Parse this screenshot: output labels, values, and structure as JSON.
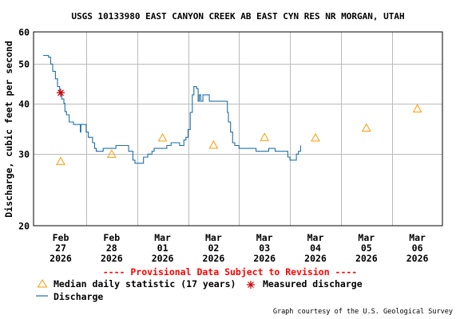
{
  "chart_data": {
    "type": "line",
    "title": "USGS 10133980 EAST CANYON CREEK AB EAST CYN RES NR MORGAN, UTAH",
    "ylabel": "Discharge, cubic feet per second",
    "y_scale": "log",
    "ylim": [
      20,
      60
    ],
    "y_ticks": [
      20,
      30,
      40,
      50,
      60
    ],
    "x_ticks": [
      {
        "date": "2026-02-27",
        "month": "Feb",
        "day": "27",
        "year": "2026"
      },
      {
        "date": "2026-02-28",
        "month": "Feb",
        "day": "28",
        "year": "2026"
      },
      {
        "date": "2026-03-01",
        "month": "Mar",
        "day": "01",
        "year": "2026"
      },
      {
        "date": "2026-03-02",
        "month": "Mar",
        "day": "02",
        "year": "2026"
      },
      {
        "date": "2026-03-03",
        "month": "Mar",
        "day": "03",
        "year": "2026"
      },
      {
        "date": "2026-03-04",
        "month": "Mar",
        "day": "04",
        "year": "2026"
      },
      {
        "date": "2026-03-05",
        "month": "Mar",
        "day": "05",
        "year": "2026"
      },
      {
        "date": "2026-03-06",
        "month": "Mar",
        "day": "06",
        "year": "2026"
      }
    ],
    "grid": true,
    "series": [
      {
        "name": "Discharge",
        "color": "#1f6faa",
        "points": [
          [
            "2026-02-26 15:45",
            52.5
          ],
          [
            "2026-02-26 17:30",
            52.5
          ],
          [
            "2026-02-26 18:15",
            52.0
          ],
          [
            "2026-02-26 19:15",
            50.0
          ],
          [
            "2026-02-26 20:15",
            48.0
          ],
          [
            "2026-02-26 21:30",
            46.0
          ],
          [
            "2026-02-26 22:30",
            44.0
          ],
          [
            "2026-02-26 23:30",
            42.5
          ],
          [
            "2026-02-27 00:30",
            41.0
          ],
          [
            "2026-02-27 01:30",
            40.0
          ],
          [
            "2026-02-27 02:00",
            38.2
          ],
          [
            "2026-02-27 02:45",
            37.5
          ],
          [
            "2026-02-27 03:30",
            37.5
          ],
          [
            "2026-02-27 04:00",
            36.0
          ],
          [
            "2026-02-27 05:15",
            36.0
          ],
          [
            "2026-02-27 06:00",
            35.5
          ],
          [
            "2026-02-27 08:30",
            35.5
          ],
          [
            "2026-02-27 09:15",
            34.0
          ],
          [
            "2026-02-27 09:30",
            35.5
          ],
          [
            "2026-02-27 10:00",
            35.5
          ],
          [
            "2026-02-27 11:00",
            35.5
          ],
          [
            "2026-02-27 12:00",
            34.0
          ],
          [
            "2026-02-27 13:00",
            33.0
          ],
          [
            "2026-02-27 14:00",
            33.0
          ],
          [
            "2026-02-27 15:00",
            32.0
          ],
          [
            "2026-02-27 16:00",
            31.0
          ],
          [
            "2026-02-27 16:45",
            30.5
          ],
          [
            "2026-02-27 18:00",
            30.5
          ],
          [
            "2026-02-27 19:00",
            30.5
          ],
          [
            "2026-02-27 20:00",
            31.0
          ],
          [
            "2026-02-28 00:00",
            31.0
          ],
          [
            "2026-02-28 02:00",
            31.5
          ],
          [
            "2026-02-28 05:00",
            31.5
          ],
          [
            "2026-02-28 08:00",
            30.5
          ],
          [
            "2026-02-28 10:00",
            29.0
          ],
          [
            "2026-02-28 11:00",
            28.5
          ],
          [
            "2026-02-28 13:00",
            28.5
          ],
          [
            "2026-02-28 15:00",
            29.5
          ],
          [
            "2026-02-28 17:00",
            30.0
          ],
          [
            "2026-02-28 19:00",
            30.5
          ],
          [
            "2026-02-28 20:00",
            31.0
          ],
          [
            "2026-03-01 00:00",
            31.0
          ],
          [
            "2026-03-01 02:00",
            31.5
          ],
          [
            "2026-03-01 04:00",
            32.0
          ],
          [
            "2026-03-01 06:00",
            32.0
          ],
          [
            "2026-03-01 08:00",
            31.5
          ],
          [
            "2026-03-01 10:00",
            32.5
          ],
          [
            "2026-03-01 11:00",
            33.0
          ],
          [
            "2026-03-01 12:00",
            34.5
          ],
          [
            "2026-03-01 13:00",
            38.0
          ],
          [
            "2026-03-01 14:00",
            42.0
          ],
          [
            "2026-03-01 14:45",
            44.0
          ],
          [
            "2026-03-01 16:00",
            43.5
          ],
          [
            "2026-03-01 16:45",
            40.5
          ],
          [
            "2026-03-01 17:15",
            42.0
          ],
          [
            "2026-03-01 18:00",
            40.5
          ],
          [
            "2026-03-01 19:00",
            42.0
          ],
          [
            "2026-03-01 21:30",
            42.0
          ],
          [
            "2026-03-01 22:00",
            40.5
          ],
          [
            "2026-03-02 00:00",
            40.5
          ],
          [
            "2026-03-02 04:00",
            40.5
          ],
          [
            "2026-03-02 06:00",
            40.5
          ],
          [
            "2026-03-02 06:30",
            38.0
          ],
          [
            "2026-03-02 07:00",
            36.0
          ],
          [
            "2026-03-02 08:00",
            34.0
          ],
          [
            "2026-03-02 09:00",
            32.0
          ],
          [
            "2026-03-02 10:00",
            31.5
          ],
          [
            "2026-03-02 12:00",
            31.0
          ],
          [
            "2026-03-02 18:00",
            31.0
          ],
          [
            "2026-03-02 20:00",
            30.5
          ],
          [
            "2026-03-03 00:00",
            30.5
          ],
          [
            "2026-03-03 02:00",
            31.0
          ],
          [
            "2026-03-03 04:00",
            31.0
          ],
          [
            "2026-03-03 05:00",
            30.5
          ],
          [
            "2026-03-03 10:00",
            30.5
          ],
          [
            "2026-03-03 11:00",
            29.5
          ],
          [
            "2026-03-03 12:00",
            29.0
          ],
          [
            "2026-03-03 14:00",
            29.0
          ],
          [
            "2026-03-03 15:00",
            30.0
          ],
          [
            "2026-03-03 16:00",
            30.5
          ],
          [
            "2026-03-03 17:00",
            31.5
          ]
        ]
      }
    ],
    "median_daily_statistic": {
      "label": "Median daily statistic (17 years)",
      "color": "#ff9900",
      "points": [
        [
          "2026-02-27 00:00",
          28.8
        ],
        [
          "2026-02-28 00:00",
          30.0
        ],
        [
          "2026-03-01 00:00",
          32.9
        ],
        [
          "2026-03-02 00:00",
          31.6
        ],
        [
          "2026-03-03 00:00",
          33.0
        ],
        [
          "2026-03-04 00:00",
          32.9
        ],
        [
          "2026-03-05 00:00",
          34.8
        ],
        [
          "2026-03-06 00:00",
          38.8
        ]
      ]
    },
    "measured_discharge": {
      "label": "Measured discharge",
      "color": "#cc0000",
      "points": [
        [
          "2026-02-27 00:00",
          42.5
        ]
      ]
    }
  },
  "provisional_note": "---- Provisional Data Subject to Revision ----",
  "legend": {
    "median_label": "Median daily statistic (17 years)",
    "measured_label": "Measured discharge",
    "discharge_label": "Discharge"
  },
  "credit": "Graph courtesy of the U.S. Geological Survey"
}
